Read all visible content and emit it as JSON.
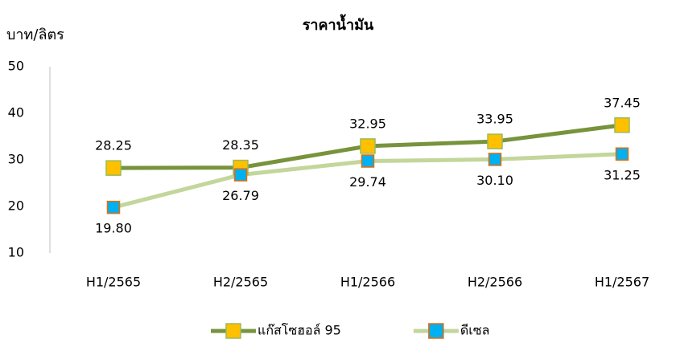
{
  "chart_data": {
    "type": "line",
    "title": "ราคาน้ำมัน",
    "y_label": "บาท/ลิตร",
    "categories": [
      "H1/2565",
      "H2/2565",
      "H1/2566",
      "H2/2566",
      "H1/2567"
    ],
    "series": [
      {
        "name": "แก๊สโซฮอล์ 95",
        "color": "#77933c",
        "marker_color": "#ffc000",
        "marker_edge": "#9bbb59",
        "values": [
          28.25,
          28.35,
          32.95,
          33.95,
          37.45
        ],
        "value_labels": [
          "28.25",
          "28.35",
          "32.95",
          "33.95",
          "37.45"
        ]
      },
      {
        "name": "ดีเซล",
        "color": "#c3d69b",
        "marker_color": "#00b0f0",
        "marker_edge": "#e46c0a",
        "values": [
          19.8,
          26.79,
          29.74,
          30.1,
          31.25
        ],
        "value_labels": [
          "19.80",
          "26.79",
          "29.74",
          "30.10",
          "31.25"
        ]
      }
    ],
    "ylim": [
      10,
      50
    ],
    "yticks": [
      10,
      20,
      30,
      40,
      50
    ],
    "grid": false,
    "legend": "bottom"
  }
}
